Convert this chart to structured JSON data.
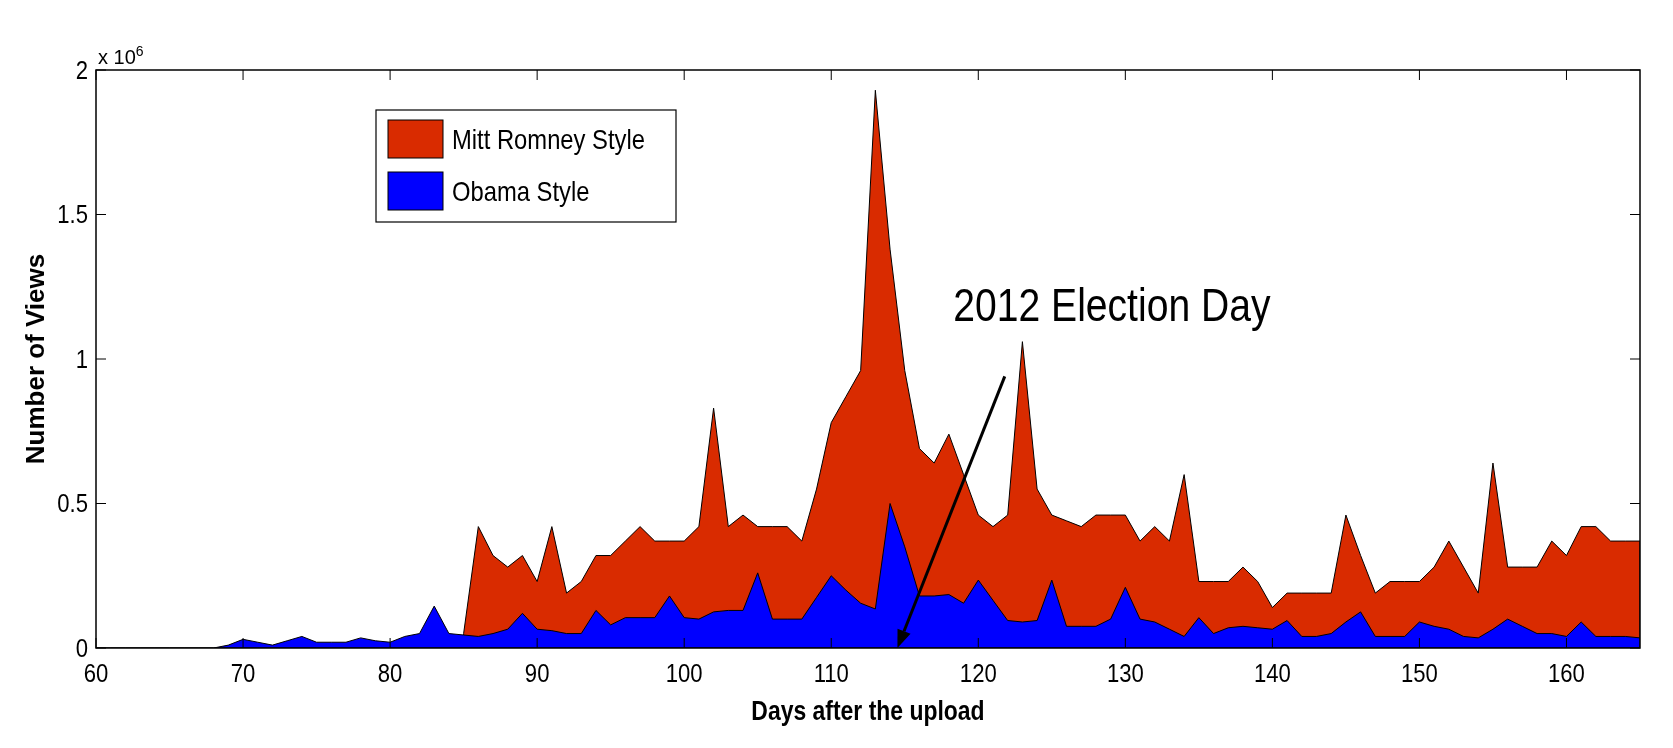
{
  "chart_data": {
    "type": "area",
    "xlabel": "Days after the upload",
    "ylabel": "Number of Views",
    "xlim": [
      60,
      165
    ],
    "xticks": [
      60,
      70,
      80,
      90,
      100,
      110,
      120,
      130,
      140,
      150,
      160
    ],
    "ylim": [
      0,
      2
    ],
    "yticks": [
      0,
      0.5,
      1,
      1.5,
      2
    ],
    "grid": false,
    "legend": "top left",
    "annotations": [
      "x 10$^{6}$",
      "2012 Election Day"
    ],
    "series": [
      {
        "name": "Mitt Romney Style",
        "color": "#d92b00",
        "x": [
          85,
          86,
          87,
          88,
          89,
          90,
          91,
          92,
          93,
          94,
          95,
          96,
          97,
          98,
          99,
          100,
          101,
          102,
          103,
          104,
          105,
          106,
          107,
          108,
          109,
          110,
          111,
          112,
          113,
          114,
          115,
          116,
          117,
          118,
          119,
          120,
          121,
          122,
          123,
          124,
          125,
          126,
          127,
          128,
          129,
          130,
          131,
          132,
          133,
          134,
          135,
          136,
          137,
          138,
          139,
          140,
          141,
          142,
          143,
          144,
          145,
          146,
          147,
          148,
          149,
          150,
          151,
          152,
          153,
          154,
          155,
          156,
          157,
          158,
          159,
          160,
          161,
          162,
          163,
          164,
          165
        ],
        "values": [
          0.05,
          0.42,
          0.32,
          0.28,
          0.32,
          0.23,
          0.42,
          0.19,
          0.23,
          0.32,
          0.32,
          0.37,
          0.42,
          0.37,
          0.37,
          0.37,
          0.42,
          0.83,
          0.42,
          0.46,
          0.42,
          0.42,
          0.42,
          0.37,
          0.55,
          0.78,
          0.87,
          0.96,
          1.93,
          1.38,
          0.96,
          0.69,
          0.64,
          0.74,
          0.6,
          0.46,
          0.42,
          0.46,
          1.06,
          0.55,
          0.46,
          0.44,
          0.42,
          0.46,
          0.46,
          0.46,
          0.37,
          0.42,
          0.37,
          0.6,
          0.23,
          0.23,
          0.23,
          0.28,
          0.23,
          0.14,
          0.19,
          0.19,
          0.19,
          0.19,
          0.46,
          0.32,
          0.19,
          0.23,
          0.23,
          0.23,
          0.28,
          0.37,
          0.28,
          0.19,
          0.64,
          0.28,
          0.28,
          0.28,
          0.37,
          0.32,
          0.42,
          0.42,
          0.37,
          0.37,
          0.37
        ]
      },
      {
        "name": "Obama Style",
        "color": "#0000ff",
        "x": [
          60,
          61,
          62,
          63,
          64,
          65,
          66,
          67,
          68,
          69,
          70,
          71,
          72,
          73,
          74,
          75,
          76,
          77,
          78,
          79,
          80,
          81,
          82,
          83,
          84,
          85,
          86,
          87,
          88,
          89,
          90,
          91,
          92,
          93,
          94,
          95,
          96,
          97,
          98,
          99,
          100,
          101,
          102,
          103,
          104,
          105,
          106,
          107,
          108,
          109,
          110,
          111,
          112,
          113,
          114,
          115,
          116,
          117,
          118,
          119,
          120,
          121,
          122,
          123,
          124,
          125,
          126,
          127,
          128,
          129,
          130,
          131,
          132,
          133,
          134,
          135,
          136,
          137,
          138,
          139,
          140,
          141,
          142,
          143,
          144,
          145,
          146,
          147,
          148,
          149,
          150,
          151,
          152,
          153,
          154,
          155,
          156,
          157,
          158,
          159,
          160,
          161,
          162,
          163,
          164,
          165
        ],
        "values": [
          0,
          0,
          0,
          0,
          0,
          0,
          0,
          0,
          0,
          0.01,
          0.03,
          0.02,
          0.01,
          0.025,
          0.04,
          0.02,
          0.02,
          0.02,
          0.035,
          0.025,
          0.02,
          0.04,
          0.05,
          0.145,
          0.05,
          0.045,
          0.04,
          0.05,
          0.065,
          0.12,
          0.065,
          0.06,
          0.05,
          0.05,
          0.13,
          0.08,
          0.105,
          0.105,
          0.105,
          0.18,
          0.105,
          0.1,
          0.125,
          0.13,
          0.13,
          0.26,
          0.1,
          0.1,
          0.1,
          0.175,
          0.25,
          0.2,
          0.155,
          0.135,
          0.5,
          0.35,
          0.18,
          0.18,
          0.185,
          0.155,
          0.235,
          0.165,
          0.095,
          0.09,
          0.095,
          0.235,
          0.075,
          0.075,
          0.075,
          0.1,
          0.21,
          0.1,
          0.09,
          0.065,
          0.04,
          0.105,
          0.05,
          0.07,
          0.075,
          0.07,
          0.065,
          0.095,
          0.04,
          0.04,
          0.05,
          0.09,
          0.125,
          0.04,
          0.04,
          0.04,
          0.09,
          0.075,
          0.065,
          0.04,
          0.035,
          0.065,
          0.1,
          0.075,
          0.05,
          0.05,
          0.04,
          0.09,
          0.04,
          0.04,
          0.04,
          0.035
        ]
      }
    ]
  }
}
